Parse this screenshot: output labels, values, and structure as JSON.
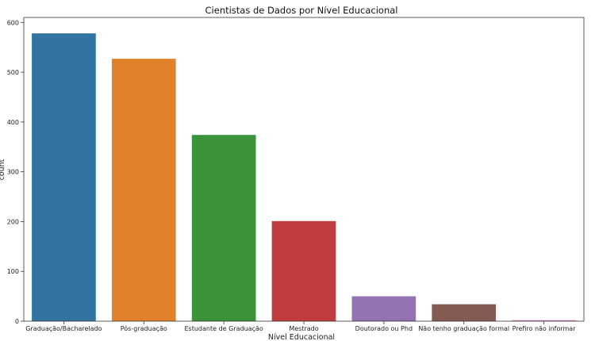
{
  "chart_data": {
    "type": "bar",
    "title": "Cientistas de Dados por Nível Educacional",
    "xlabel": "Nível Educacional",
    "ylabel": "count",
    "ylim": [
      0,
      610
    ],
    "yticks": [
      0,
      100,
      200,
      300,
      400,
      500,
      600
    ],
    "grid": false,
    "categories": [
      "Graduação/Bacharelado",
      "Pós-graduação",
      "Estudante de Graduação",
      "Mestrado",
      "Doutorado ou Phd",
      "Não tenho graduação formal",
      "Prefiro não informar"
    ],
    "values": [
      578,
      527,
      374,
      201,
      50,
      34,
      2
    ],
    "colors": [
      "#3274a1",
      "#e1812c",
      "#3a923a",
      "#c03d3e",
      "#9372b2",
      "#845b53",
      "#d684bd"
    ]
  }
}
